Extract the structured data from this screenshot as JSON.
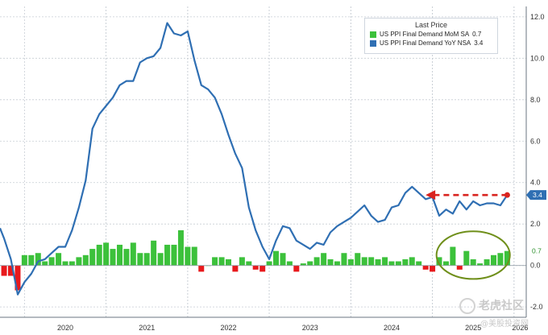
{
  "chart_data": {
    "type": "bar+line",
    "title": "",
    "legend": {
      "title": "Last Price",
      "placement": "top-right",
      "entries": [
        {
          "name": "US PPI Final Demand MoM SA",
          "value": "0.7",
          "color": "#3cc13b"
        },
        {
          "name": "US PPI Final Demand YoY NSA",
          "value": "3.4",
          "color": "#2f6fb3"
        }
      ]
    },
    "x_ticks": [
      "2020",
      "2021",
      "2022",
      "2023",
      "2024",
      "2025",
      "2026"
    ],
    "xlim": [
      2019.7,
      2026.15
    ],
    "ylim": [
      -2.5,
      12.5
    ],
    "y_ticks": [
      -2.0,
      0.0,
      2.0,
      4.0,
      6.0,
      8.0,
      10.0,
      12.0
    ],
    "y_tick_labels": [
      "-2.0",
      "0.0",
      "2.0",
      "4.0",
      "6.0",
      "8.0",
      "10.0",
      "12.0"
    ],
    "grid": true,
    "series": [
      {
        "name": "US PPI Final Demand MoM SA",
        "kind": "bar",
        "positive_color": "#3cc13b",
        "negative_color": "#e8191c",
        "last_label": "0.7",
        "points": [
          {
            "x": 2019.75,
            "y": -0.5
          },
          {
            "x": 2019.833,
            "y": -0.5
          },
          {
            "x": 2019.917,
            "y": -1.2
          },
          {
            "x": 2020.0,
            "y": 0.5
          },
          {
            "x": 2020.083,
            "y": 0.5
          },
          {
            "x": 2020.167,
            "y": 0.6
          },
          {
            "x": 2020.25,
            "y": 0.2
          },
          {
            "x": 2020.333,
            "y": 0.4
          },
          {
            "x": 2020.417,
            "y": 0.6
          },
          {
            "x": 2020.5,
            "y": 0.2
          },
          {
            "x": 2020.583,
            "y": 0.2
          },
          {
            "x": 2020.667,
            "y": 0.4
          },
          {
            "x": 2020.75,
            "y": 0.5
          },
          {
            "x": 2020.833,
            "y": 0.8
          },
          {
            "x": 2020.917,
            "y": 1.0
          },
          {
            "x": 2021.0,
            "y": 1.1
          },
          {
            "x": 2021.083,
            "y": 0.8
          },
          {
            "x": 2021.167,
            "y": 1.0
          },
          {
            "x": 2021.25,
            "y": 0.8
          },
          {
            "x": 2021.333,
            "y": 1.1
          },
          {
            "x": 2021.417,
            "y": 0.6
          },
          {
            "x": 2021.5,
            "y": 0.6
          },
          {
            "x": 2021.583,
            "y": 1.2
          },
          {
            "x": 2021.667,
            "y": 0.6
          },
          {
            "x": 2021.75,
            "y": 1.0
          },
          {
            "x": 2021.833,
            "y": 1.0
          },
          {
            "x": 2021.917,
            "y": 1.7
          },
          {
            "x": 2022.0,
            "y": 0.9
          },
          {
            "x": 2022.083,
            "y": 0.9
          },
          {
            "x": 2022.167,
            "y": -0.3
          },
          {
            "x": 2022.25,
            "y": 0.0
          },
          {
            "x": 2022.333,
            "y": 0.4
          },
          {
            "x": 2022.417,
            "y": 0.4
          },
          {
            "x": 2022.5,
            "y": 0.3
          },
          {
            "x": 2022.583,
            "y": -0.3
          },
          {
            "x": 2022.667,
            "y": 0.4
          },
          {
            "x": 2022.75,
            "y": 0.2
          },
          {
            "x": 2022.833,
            "y": -0.2
          },
          {
            "x": 2022.917,
            "y": -0.3
          },
          {
            "x": 2023.0,
            "y": 0.2
          },
          {
            "x": 2023.083,
            "y": 0.7
          },
          {
            "x": 2023.167,
            "y": 0.6
          },
          {
            "x": 2023.25,
            "y": 0.2
          },
          {
            "x": 2023.333,
            "y": -0.3
          },
          {
            "x": 2023.417,
            "y": 0.1
          },
          {
            "x": 2023.5,
            "y": 0.2
          },
          {
            "x": 2023.583,
            "y": 0.4
          },
          {
            "x": 2023.667,
            "y": 0.6
          },
          {
            "x": 2023.75,
            "y": 0.3
          },
          {
            "x": 2023.833,
            "y": 0.2
          },
          {
            "x": 2023.917,
            "y": 0.6
          },
          {
            "x": 2024.0,
            "y": 0.3
          },
          {
            "x": 2024.083,
            "y": 0.6
          },
          {
            "x": 2024.167,
            "y": 0.4
          },
          {
            "x": 2024.25,
            "y": 0.4
          },
          {
            "x": 2024.333,
            "y": 0.3
          },
          {
            "x": 2024.417,
            "y": 0.4
          },
          {
            "x": 2024.5,
            "y": 0.2
          },
          {
            "x": 2024.583,
            "y": 0.2
          },
          {
            "x": 2024.667,
            "y": 0.3
          },
          {
            "x": 2024.75,
            "y": 0.4
          },
          {
            "x": 2024.833,
            "y": 0.2
          },
          {
            "x": 2024.917,
            "y": -0.2
          },
          {
            "x": 2025.0,
            "y": -0.3
          },
          {
            "x": 2025.083,
            "y": 0.4
          },
          {
            "x": 2025.167,
            "y": 0.2
          },
          {
            "x": 2025.25,
            "y": 0.9
          },
          {
            "x": 2025.333,
            "y": -0.2
          },
          {
            "x": 2025.417,
            "y": 0.7
          },
          {
            "x": 2025.5,
            "y": 0.3
          },
          {
            "x": 2025.583,
            "y": 0.1
          },
          {
            "x": 2025.667,
            "y": 0.3
          },
          {
            "x": 2025.75,
            "y": 0.5
          },
          {
            "x": 2025.833,
            "y": 0.6
          },
          {
            "x": 2025.917,
            "y": 0.7
          }
        ]
      },
      {
        "name": "US PPI Final Demand YoY NSA",
        "kind": "line",
        "color": "#2f6fb3",
        "last_label": "3.4",
        "points": [
          {
            "x": 2019.7,
            "y": 1.8
          },
          {
            "x": 2019.75,
            "y": 1.3
          },
          {
            "x": 2019.833,
            "y": 0.3
          },
          {
            "x": 2019.917,
            "y": -1.4
          },
          {
            "x": 2020.0,
            "y": -0.8
          },
          {
            "x": 2020.083,
            "y": -0.4
          },
          {
            "x": 2020.167,
            "y": 0.2
          },
          {
            "x": 2020.25,
            "y": 0.3
          },
          {
            "x": 2020.333,
            "y": 0.6
          },
          {
            "x": 2020.417,
            "y": 0.9
          },
          {
            "x": 2020.5,
            "y": 0.9
          },
          {
            "x": 2020.583,
            "y": 1.7
          },
          {
            "x": 2020.667,
            "y": 2.8
          },
          {
            "x": 2020.75,
            "y": 4.1
          },
          {
            "x": 2020.833,
            "y": 6.6
          },
          {
            "x": 2020.917,
            "y": 7.3
          },
          {
            "x": 2021.0,
            "y": 7.7
          },
          {
            "x": 2021.083,
            "y": 8.1
          },
          {
            "x": 2021.167,
            "y": 8.7
          },
          {
            "x": 2021.25,
            "y": 8.9
          },
          {
            "x": 2021.333,
            "y": 8.9
          },
          {
            "x": 2021.417,
            "y": 9.8
          },
          {
            "x": 2021.5,
            "y": 10.0
          },
          {
            "x": 2021.583,
            "y": 10.1
          },
          {
            "x": 2021.667,
            "y": 10.5
          },
          {
            "x": 2021.75,
            "y": 11.7
          },
          {
            "x": 2021.833,
            "y": 11.2
          },
          {
            "x": 2021.917,
            "y": 11.1
          },
          {
            "x": 2022.0,
            "y": 11.3
          },
          {
            "x": 2022.083,
            "y": 9.9
          },
          {
            "x": 2022.167,
            "y": 8.7
          },
          {
            "x": 2022.25,
            "y": 8.5
          },
          {
            "x": 2022.333,
            "y": 8.1
          },
          {
            "x": 2022.417,
            "y": 7.3
          },
          {
            "x": 2022.5,
            "y": 6.3
          },
          {
            "x": 2022.583,
            "y": 5.4
          },
          {
            "x": 2022.667,
            "y": 4.7
          },
          {
            "x": 2022.75,
            "y": 2.8
          },
          {
            "x": 2022.833,
            "y": 1.7
          },
          {
            "x": 2022.917,
            "y": 0.9
          },
          {
            "x": 2023.0,
            "y": 0.3
          },
          {
            "x": 2023.083,
            "y": 1.2
          },
          {
            "x": 2023.167,
            "y": 1.9
          },
          {
            "x": 2023.25,
            "y": 1.8
          },
          {
            "x": 2023.333,
            "y": 1.2
          },
          {
            "x": 2023.417,
            "y": 1.0
          },
          {
            "x": 2023.5,
            "y": 0.8
          },
          {
            "x": 2023.583,
            "y": 1.1
          },
          {
            "x": 2023.667,
            "y": 1.0
          },
          {
            "x": 2023.75,
            "y": 1.6
          },
          {
            "x": 2023.833,
            "y": 1.9
          },
          {
            "x": 2023.917,
            "y": 2.1
          },
          {
            "x": 2024.0,
            "y": 2.3
          },
          {
            "x": 2024.083,
            "y": 2.6
          },
          {
            "x": 2024.167,
            "y": 2.9
          },
          {
            "x": 2024.25,
            "y": 2.4
          },
          {
            "x": 2024.333,
            "y": 2.1
          },
          {
            "x": 2024.417,
            "y": 2.2
          },
          {
            "x": 2024.5,
            "y": 2.8
          },
          {
            "x": 2024.583,
            "y": 2.9
          },
          {
            "x": 2024.667,
            "y": 3.5
          },
          {
            "x": 2024.75,
            "y": 3.8
          },
          {
            "x": 2024.833,
            "y": 3.5
          },
          {
            "x": 2024.917,
            "y": 3.2
          },
          {
            "x": 2025.0,
            "y": 3.3
          },
          {
            "x": 2025.083,
            "y": 2.4
          },
          {
            "x": 2025.167,
            "y": 2.7
          },
          {
            "x": 2025.25,
            "y": 2.5
          },
          {
            "x": 2025.333,
            "y": 3.1
          },
          {
            "x": 2025.417,
            "y": 2.7
          },
          {
            "x": 2025.5,
            "y": 3.1
          },
          {
            "x": 2025.583,
            "y": 2.9
          },
          {
            "x": 2025.667,
            "y": 3.0
          },
          {
            "x": 2025.75,
            "y": 3.0
          },
          {
            "x": 2025.833,
            "y": 2.9
          },
          {
            "x": 2025.917,
            "y": 3.4
          }
        ]
      }
    ],
    "annotations": [
      {
        "kind": "dashed-arrow",
        "color": "#d9231f",
        "x_from": 2025.917,
        "x_to": 2024.917,
        "y": 3.4
      },
      {
        "kind": "ellipse",
        "color": "#6f8f1a",
        "x_center": 2025.5,
        "y_center": 0.5,
        "x_radius": 0.45,
        "y_radius": 1.15
      }
    ]
  },
  "watermark": {
    "line1": "老虎社区",
    "line2": "@美股投资网"
  }
}
